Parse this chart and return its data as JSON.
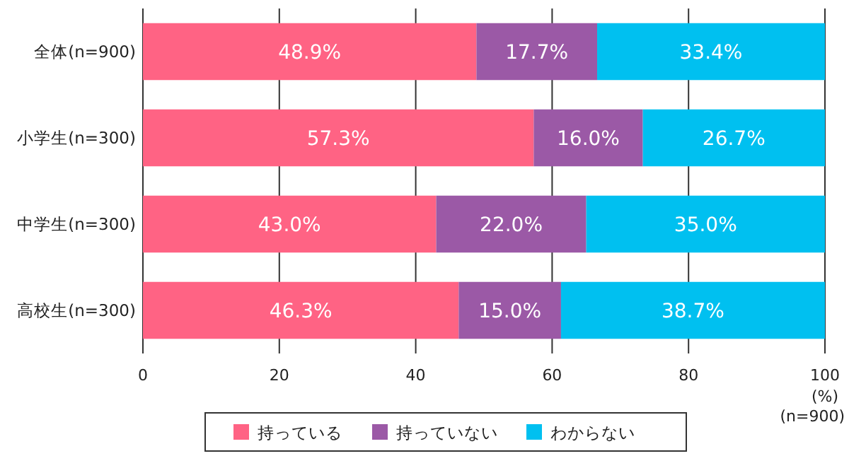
{
  "chart_data": {
    "type": "bar",
    "orientation": "horizontal",
    "stacked": true,
    "categories": [
      "全体(n=900)",
      "小学生(n=300)",
      "中学生(n=300)",
      "高校生(n=300)"
    ],
    "series": [
      {
        "name": "持っている",
        "color": "#ff6384",
        "values": [
          48.9,
          57.3,
          43.0,
          46.3
        ],
        "value_labels": [
          "48.9%",
          "57.3%",
          "43.0%",
          "46.3%"
        ]
      },
      {
        "name": "持っていない",
        "color": "#9b59a6",
        "values": [
          17.7,
          16.0,
          22.0,
          15.0
        ],
        "value_labels": [
          "17.7%",
          "16.0%",
          "22.0%",
          "15.0%"
        ]
      },
      {
        "name": "わからない",
        "color": "#00c0f0",
        "values": [
          33.4,
          26.7,
          35.0,
          38.7
        ],
        "value_labels": [
          "33.4%",
          "26.7%",
          "35.0%",
          "38.7%"
        ]
      }
    ],
    "xlim": [
      0,
      100
    ],
    "xticks": [
      0,
      20,
      40,
      60,
      80,
      100
    ],
    "xlabel": "(%)",
    "annotations": [
      "(n=900)"
    ],
    "grid": "x",
    "legend": "bottom"
  }
}
